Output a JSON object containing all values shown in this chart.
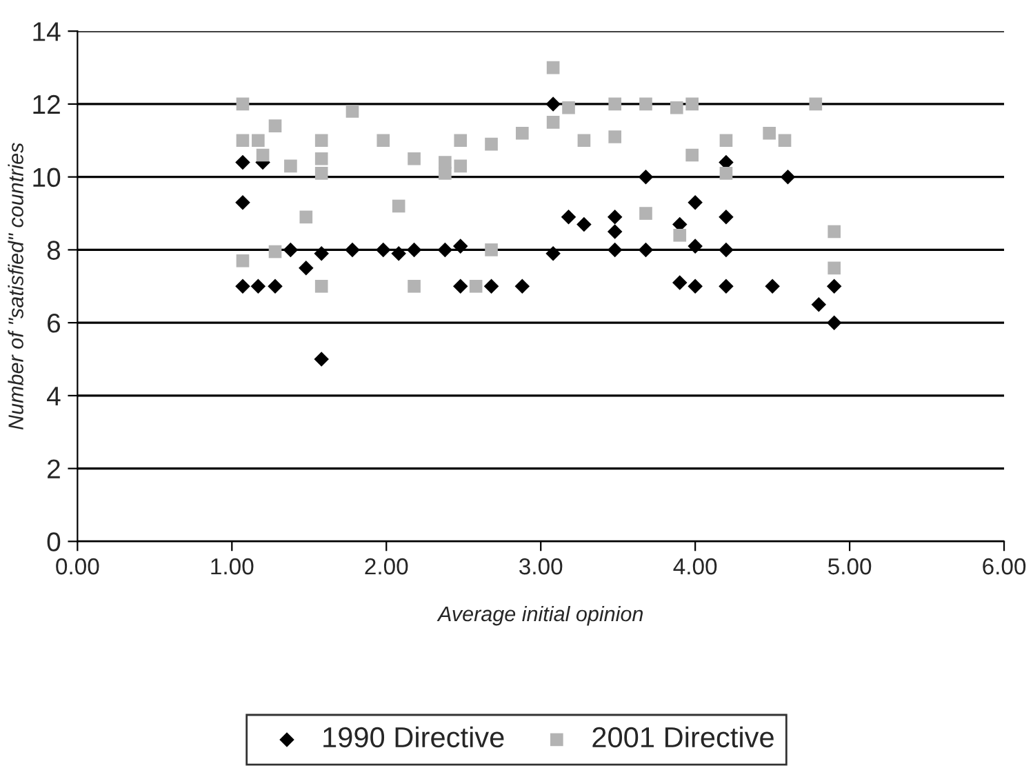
{
  "chart_data": {
    "type": "scatter",
    "xlabel": "Average initial opinion",
    "ylabel": "Number of \"satisfied\" countries",
    "xlim": [
      0,
      6
    ],
    "xticks": [
      {
        "value": 0,
        "label": "0.00"
      },
      {
        "value": 1,
        "label": "1.00"
      },
      {
        "value": 2,
        "label": "2.00"
      },
      {
        "value": 3,
        "label": "3.00"
      },
      {
        "value": 4,
        "label": "4.00"
      },
      {
        "value": 5,
        "label": "5.00"
      },
      {
        "value": 6,
        "label": "6.00"
      }
    ],
    "ylim": [
      0,
      14
    ],
    "yticks": [
      0,
      2,
      4,
      6,
      8,
      10,
      12,
      14
    ],
    "grid": "y",
    "legend": "bottom",
    "series": [
      {
        "name": "1990 Directive",
        "color": "#000000",
        "marker": "diamond",
        "x": [
          1.07,
          1.07,
          1.07,
          1.2,
          1.17,
          1.28,
          1.38,
          1.48,
          1.58,
          1.58,
          1.78,
          1.98,
          2.08,
          2.18,
          2.38,
          2.48,
          2.48,
          2.68,
          2.88,
          3.08,
          3.08,
          3.18,
          3.28,
          3.48,
          3.48,
          3.48,
          3.68,
          3.68,
          3.9,
          3.9,
          4.0,
          4.0,
          4.0,
          4.2,
          4.2,
          4.2,
          4.2,
          4.5,
          4.6,
          4.8,
          4.9,
          4.9
        ],
        "values": [
          10.4,
          9.3,
          7,
          10.4,
          7,
          7,
          8,
          7.5,
          7.9,
          5,
          8,
          8,
          7.9,
          8,
          8,
          8.1,
          7,
          7,
          7,
          12,
          7.9,
          8.9,
          8.7,
          8.9,
          8.5,
          8,
          10,
          8,
          8.7,
          7.1,
          9.3,
          8.1,
          7,
          10.4,
          8.9,
          8,
          7,
          7,
          10,
          6.5,
          7,
          6
        ]
      },
      {
        "name": "2001 Directive",
        "color": "#b3b3b3",
        "marker": "square",
        "x": [
          1.07,
          1.07,
          1.17,
          1.2,
          1.28,
          1.07,
          1.28,
          1.38,
          1.48,
          1.58,
          1.58,
          1.58,
          1.58,
          1.78,
          1.98,
          2.08,
          2.18,
          2.18,
          2.38,
          2.38,
          2.48,
          2.48,
          2.58,
          2.68,
          2.68,
          2.88,
          3.08,
          3.08,
          3.18,
          3.28,
          3.48,
          3.48,
          3.68,
          3.68,
          3.88,
          3.98,
          3.98,
          3.9,
          4.2,
          4.2,
          4.48,
          4.58,
          4.78,
          4.9,
          4.9
        ],
        "values": [
          12,
          11,
          11,
          10.6,
          11.4,
          7.7,
          7.95,
          10.3,
          8.9,
          11,
          10.5,
          10.1,
          7,
          11.8,
          11,
          9.2,
          10.5,
          7,
          10.4,
          10.1,
          10.3,
          11,
          7,
          10.9,
          8,
          11.2,
          13,
          11.5,
          11.9,
          11,
          12,
          11.1,
          12,
          9,
          11.9,
          12,
          10.6,
          8.4,
          11,
          10.1,
          11.2,
          11,
          12,
          8.5,
          7.5
        ]
      }
    ]
  }
}
